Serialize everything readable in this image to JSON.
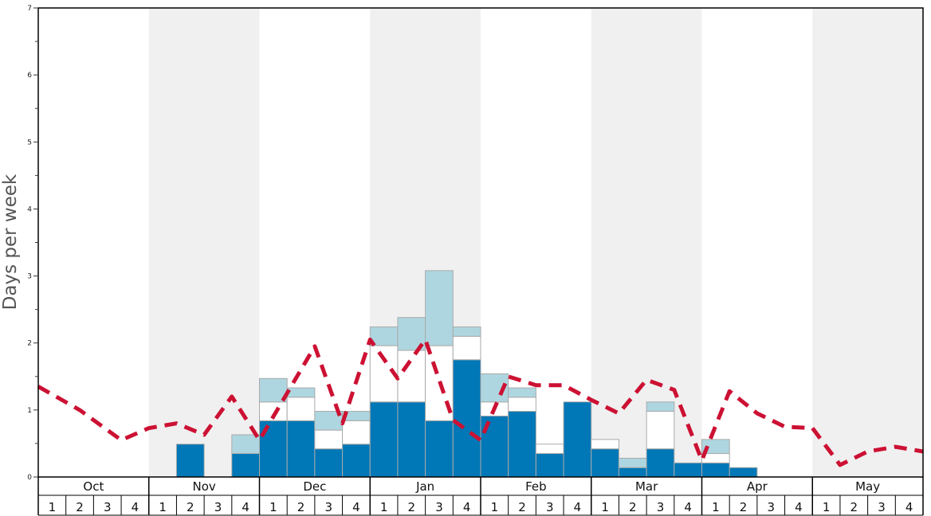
{
  "chart_data": {
    "type": "bar",
    "ylabel": "Days per week",
    "xlabel": "",
    "title": "",
    "ylim": [
      0,
      7
    ],
    "yticks": [
      "0",
      "1",
      "2",
      "3",
      "4",
      "5",
      "6",
      "7"
    ],
    "months": [
      "Oct",
      "Nov",
      "Dec",
      "Jan",
      "Feb",
      "Mar",
      "Apr",
      "May"
    ],
    "weeks": [
      "1",
      "2",
      "3",
      "4"
    ],
    "shaded_months": [
      "Nov",
      "Jan",
      "Mar",
      "May"
    ],
    "colors": {
      "dark": "#0077b6",
      "mid": "#ffffff",
      "light": "#aed6e0",
      "line": "#cc1133",
      "shade": "#f0f0f0"
    },
    "stacks": [
      {
        "dark": 0,
        "mid": 0,
        "light": 0
      },
      {
        "dark": 0,
        "mid": 0,
        "light": 0
      },
      {
        "dark": 0,
        "mid": 0,
        "light": 0
      },
      {
        "dark": 0,
        "mid": 0,
        "light": 0
      },
      {
        "dark": 0,
        "mid": 0,
        "light": 0
      },
      {
        "dark": 0.49,
        "mid": 0,
        "light": 0
      },
      {
        "dark": 0,
        "mid": 0,
        "light": 0
      },
      {
        "dark": 0.35,
        "mid": 0,
        "light": 0.28
      },
      {
        "dark": 0.84,
        "mid": 0.28,
        "light": 0.35
      },
      {
        "dark": 0.84,
        "mid": 0.35,
        "light": 0.14
      },
      {
        "dark": 0.42,
        "mid": 0.28,
        "light": 0.28
      },
      {
        "dark": 0.49,
        "mid": 0.35,
        "light": 0.14
      },
      {
        "dark": 1.12,
        "mid": 0.84,
        "light": 0.28
      },
      {
        "dark": 1.12,
        "mid": 0.77,
        "light": 0.49
      },
      {
        "dark": 0.84,
        "mid": 1.12,
        "light": 1.12
      },
      {
        "dark": 1.75,
        "mid": 0.35,
        "light": 0.14
      },
      {
        "dark": 0.91,
        "mid": 0.21,
        "light": 0.42
      },
      {
        "dark": 0.98,
        "mid": 0.21,
        "light": 0.14
      },
      {
        "dark": 0.35,
        "mid": 0.14,
        "light": 0
      },
      {
        "dark": 1.12,
        "mid": 0,
        "light": 0
      },
      {
        "dark": 0.42,
        "mid": 0.14,
        "light": 0
      },
      {
        "dark": 0.14,
        "mid": 0,
        "light": 0.14
      },
      {
        "dark": 0.42,
        "mid": 0.56,
        "light": 0.14
      },
      {
        "dark": 0.21,
        "mid": 0,
        "light": 0
      },
      {
        "dark": 0.21,
        "mid": 0.14,
        "light": 0.21
      },
      {
        "dark": 0.14,
        "mid": 0,
        "light": 0
      },
      {
        "dark": 0,
        "mid": 0,
        "light": 0
      },
      {
        "dark": 0,
        "mid": 0,
        "light": 0
      },
      {
        "dark": 0,
        "mid": 0,
        "light": 0
      },
      {
        "dark": 0,
        "mid": 0,
        "light": 0
      },
      {
        "dark": 0,
        "mid": 0,
        "light": 0
      },
      {
        "dark": 0,
        "mid": 0,
        "light": 0
      }
    ],
    "line": [
      {
        "x": 0,
        "y": 1.35
      },
      {
        "x": 1.5,
        "y": 1.0
      },
      {
        "x": 3,
        "y": 0.55
      },
      {
        "x": 4,
        "y": 0.73
      },
      {
        "x": 5,
        "y": 0.8
      },
      {
        "x": 6,
        "y": 0.63
      },
      {
        "x": 7,
        "y": 1.2
      },
      {
        "x": 8,
        "y": 0.55
      },
      {
        "x": 10,
        "y": 1.95
      },
      {
        "x": 11,
        "y": 0.8
      },
      {
        "x": 12,
        "y": 2.05
      },
      {
        "x": 13,
        "y": 1.47
      },
      {
        "x": 14,
        "y": 2.05
      },
      {
        "x": 15,
        "y": 0.85
      },
      {
        "x": 16,
        "y": 0.55
      },
      {
        "x": 17,
        "y": 1.5
      },
      {
        "x": 18,
        "y": 1.37
      },
      {
        "x": 19,
        "y": 1.37
      },
      {
        "x": 20,
        "y": 1.15
      },
      {
        "x": 21,
        "y": 0.95
      },
      {
        "x": 22,
        "y": 1.45
      },
      {
        "x": 23,
        "y": 1.3
      },
      {
        "x": 24,
        "y": 0.25
      },
      {
        "x": 25,
        "y": 1.28
      },
      {
        "x": 26,
        "y": 0.95
      },
      {
        "x": 27,
        "y": 0.75
      },
      {
        "x": 28,
        "y": 0.73
      },
      {
        "x": 29,
        "y": 0.18
      },
      {
        "x": 30,
        "y": 0.38
      },
      {
        "x": 31,
        "y": 0.45
      },
      {
        "x": 32,
        "y": 0.38
      }
    ]
  }
}
